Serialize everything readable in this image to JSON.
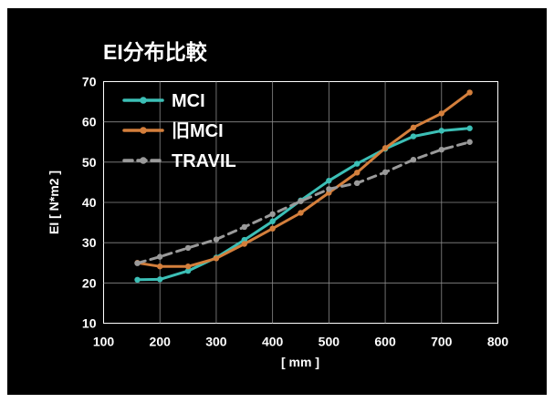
{
  "chart_data": {
    "type": "line",
    "title": "EI分布比較",
    "xlabel": "[ mm ]",
    "ylabel": "EI [ N*m2 ]",
    "xlim": [
      100,
      800
    ],
    "ylim": [
      10,
      70
    ],
    "x_ticks": [
      100,
      200,
      300,
      400,
      500,
      600,
      700,
      800
    ],
    "y_ticks": [
      10,
      20,
      30,
      40,
      50,
      60,
      70
    ],
    "grid": true,
    "legend_position": "top-left",
    "background": "#000000",
    "series": [
      {
        "name": "MCI",
        "color": "#3cbfb6",
        "style": "solid",
        "x": [
          160,
          200,
          250,
          300,
          350,
          400,
          450,
          500,
          550,
          600,
          650,
          700,
          750
        ],
        "y": [
          20.8,
          20.9,
          23.0,
          26.3,
          30.7,
          35.3,
          40.5,
          45.4,
          49.6,
          53.3,
          56.4,
          57.8,
          58.4
        ]
      },
      {
        "name": "旧MCI",
        "color": "#d47f3c",
        "style": "solid",
        "x": [
          160,
          200,
          250,
          300,
          350,
          400,
          450,
          500,
          550,
          600,
          650,
          700,
          750
        ],
        "y": [
          25.0,
          24.1,
          24.1,
          26.1,
          29.7,
          33.5,
          37.4,
          42.4,
          47.4,
          53.5,
          58.6,
          62.1,
          67.3
        ]
      },
      {
        "name": "TRAVIL",
        "color": "#9a9a9a",
        "style": "dashed",
        "x": [
          160,
          200,
          250,
          300,
          350,
          400,
          450,
          500,
          550,
          600,
          650,
          700,
          750
        ],
        "y": [
          24.9,
          26.5,
          28.7,
          30.8,
          33.9,
          37.1,
          40.3,
          43.3,
          44.8,
          47.5,
          50.6,
          53.1,
          55.0
        ]
      }
    ]
  }
}
